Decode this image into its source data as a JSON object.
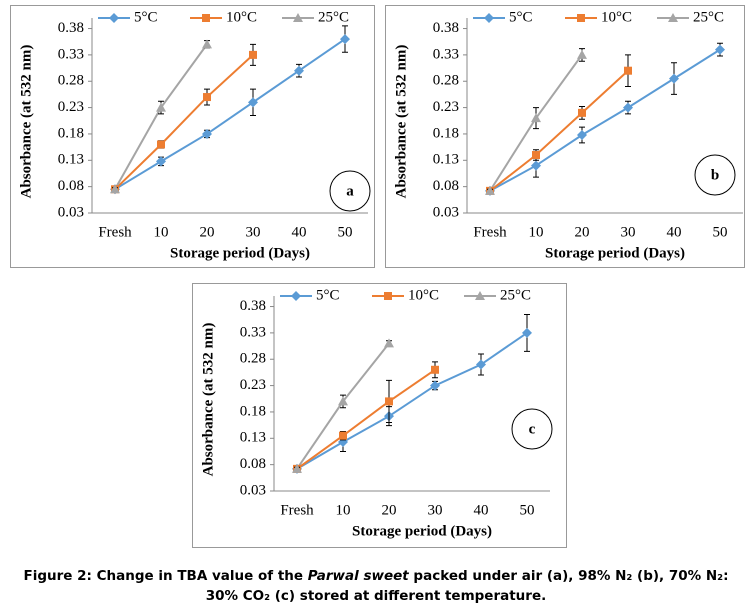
{
  "chart_data": [
    {
      "type": "line",
      "panel": "a",
      "x_label": "Storage period (Days)",
      "y_label": "Absorbance (at 532 nm)",
      "categories": [
        "Fresh",
        "10",
        "20",
        "30",
        "40",
        "50"
      ],
      "ylim": [
        0.03,
        0.4
      ],
      "yticks": [
        0.03,
        0.08,
        0.13,
        0.18,
        0.23,
        0.28,
        0.33,
        0.38
      ],
      "series": [
        {
          "name": "5°C",
          "color": "#5b9bd5",
          "marker": "diamond",
          "values": [
            0.075,
            0.128,
            0.18,
            0.24,
            0.3,
            0.36
          ],
          "errors": [
            0.003,
            0.008,
            0.007,
            0.025,
            0.012,
            0.025
          ]
        },
        {
          "name": "10°C",
          "color": "#ed7d31",
          "marker": "square",
          "values": [
            0.075,
            0.16,
            0.25,
            0.33,
            null,
            null
          ],
          "errors": [
            0.003,
            0.007,
            0.015,
            0.02,
            null,
            null
          ]
        },
        {
          "name": "25°C",
          "color": "#a5a5a5",
          "marker": "triangle",
          "values": [
            0.075,
            0.23,
            0.35,
            null,
            null,
            null
          ],
          "errors": [
            0.003,
            0.012,
            0.007,
            null,
            null,
            null
          ]
        }
      ]
    },
    {
      "type": "line",
      "panel": "b",
      "x_label": "Storage period (Days)",
      "y_label": "Absorbance (at 532 nm)",
      "categories": [
        "Fresh",
        "10",
        "20",
        "30",
        "40",
        "50"
      ],
      "ylim": [
        0.03,
        0.4
      ],
      "yticks": [
        0.03,
        0.08,
        0.13,
        0.18,
        0.23,
        0.28,
        0.33,
        0.38
      ],
      "series": [
        {
          "name": "5°C",
          "color": "#5b9bd5",
          "marker": "diamond",
          "values": [
            0.072,
            0.12,
            0.178,
            0.23,
            0.285,
            0.34
          ],
          "errors": [
            0.003,
            0.022,
            0.015,
            0.012,
            0.03,
            0.012
          ]
        },
        {
          "name": "10°C",
          "color": "#ed7d31",
          "marker": "square",
          "values": [
            0.072,
            0.14,
            0.22,
            0.3,
            null,
            null
          ],
          "errors": [
            0.003,
            0.01,
            0.012,
            0.03,
            null,
            null
          ]
        },
        {
          "name": "25°C",
          "color": "#a5a5a5",
          "marker": "triangle",
          "values": [
            0.072,
            0.21,
            0.33,
            null,
            null,
            null
          ],
          "errors": [
            0.003,
            0.02,
            0.012,
            null,
            null,
            null
          ]
        }
      ]
    },
    {
      "type": "line",
      "panel": "c",
      "x_label": "Storage period (Days)",
      "y_label": "Absorbance (at 532 nm)",
      "categories": [
        "Fresh",
        "10",
        "20",
        "30",
        "40",
        "50"
      ],
      "ylim": [
        0.03,
        0.4
      ],
      "yticks": [
        0.03,
        0.08,
        0.13,
        0.18,
        0.23,
        0.28,
        0.33,
        0.38
      ],
      "series": [
        {
          "name": "5°C",
          "color": "#5b9bd5",
          "marker": "diamond",
          "values": [
            0.072,
            0.123,
            0.172,
            0.23,
            0.27,
            0.33
          ],
          "errors": [
            0.003,
            0.018,
            0.018,
            0.008,
            0.02,
            0.035
          ]
        },
        {
          "name": "10°C",
          "color": "#ed7d31",
          "marker": "square",
          "values": [
            0.072,
            0.135,
            0.2,
            0.26,
            null,
            null
          ],
          "errors": [
            0.003,
            0.008,
            0.04,
            0.015,
            null,
            null
          ]
        },
        {
          "name": "25°C",
          "color": "#a5a5a5",
          "marker": "triangle",
          "values": [
            0.072,
            0.2,
            0.31,
            null,
            null,
            null
          ],
          "errors": [
            0.003,
            0.012,
            0.005,
            null,
            null,
            null
          ]
        }
      ]
    }
  ],
  "caption": [
    "Figure 2: Change in TBA value of the ",
    "Parwal sweet",
    " packed under air (a), 98% N₂ (b), 70% N₂: 30% CO₂ (c) stored at different temperature."
  ]
}
